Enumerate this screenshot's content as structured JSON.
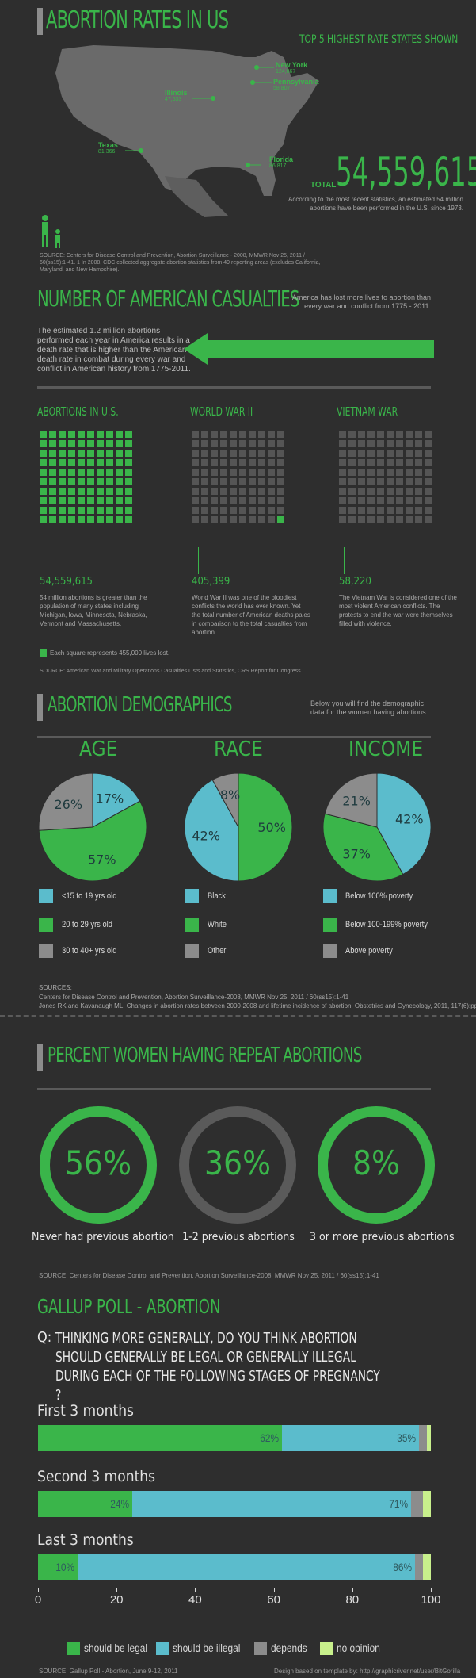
{
  "header": {
    "title": "ABORTION RATES IN US",
    "top5_label": "TOP 5 HIGHEST RATE STATES SHOWN",
    "states": [
      {
        "name": "New York",
        "value": "124,867"
      },
      {
        "name": "Pennsylvania",
        "value": "58,807"
      },
      {
        "name": "Illinois",
        "value": "47,633"
      },
      {
        "name": "Texas",
        "value": "81,366"
      },
      {
        "name": "Florida",
        "value": "86,817"
      }
    ],
    "total_label": "TOTAL",
    "total_value": "54,559,615",
    "total_desc": "According to the most recent statistics, an estimated 54 million abortions have been performed in the U.S. since 1973.",
    "source": "SOURCE: Centers for Disease Control and Prevention, Abortion Surveillance - 2008, MMWR Nov 25, 2011 / 60(ss15):1-41. 1 In 2008, CDC collected aggregate abortion statistics from 49 reporting areas (excludes California, Maryland, and New Hampshire)."
  },
  "casualties": {
    "title": "NUMBER OF AMERICAN CASUALTIES",
    "subtitle": "America has lost more lives to abortion than every war and conflict from 1775 - 2011.",
    "body": "The estimated 1.2 million abortions performed each year in America results in a death rate that is higher than the American death rate in combat during every war and conflict in American history from 1775-2011.",
    "columns": [
      {
        "title": "ABORTIONS IN U.S.",
        "value": "54,559,615",
        "desc": "54 million abortions is greater than the population of many states including Michigan, Iowa, Minnesota, Nebraska, Vermont and Massachusetts.",
        "filled": 100
      },
      {
        "title": "WORLD WAR II",
        "value": "405,399",
        "desc": "World War II was one of the bloodiest conflicts the world has ever known. Yet the total number of American deaths pales in comparison to the total casualties from abortion.",
        "filled": 1
      },
      {
        "title": "VIETNAM WAR",
        "value": "58,220",
        "desc": "The Vietnam War is considered one of the most violent American conflicts. The protests to end the war were themselves filled with violence.",
        "filled": 0
      }
    ],
    "legend": "Each square represents 455,000 lives lost.",
    "source": "SOURCE: American War and Military Operations Casualties Lists and Statistics, CRS Report for Congress"
  },
  "demographics": {
    "title": "ABORTION DEMOGRAPHICS",
    "subtitle": "Below you will find the demographic data for the women having abortions.",
    "sources_label": "SOURCES:",
    "source_1": "Centers for Disease Control and Prevention, Abortion Surveillance-2008, MMWR Nov 25, 2011 / 60(ss15):1-41",
    "source_2": "Jones RK and Kavanaugh ML, Changes in abortion rates between 2000-2008 and lifetime incidence of abortion, Obstetrics and Gynecology, 2011, 117(6):pp-pp"
  },
  "repeat": {
    "title": "PERCENT WOMEN HAVING REPEAT ABORTIONS",
    "items": [
      {
        "value": "56%",
        "label": "Never had previous abortion"
      },
      {
        "value": "36%",
        "label": "1-2 previous abortions"
      },
      {
        "value": "8%",
        "label": "3 or more previous abortions"
      }
    ],
    "source": "SOURCE: Centers for Disease Control and Prevention, Abortion Surveillance-2008, MMWR Nov 25, 2011 / 60(ss15):1-41"
  },
  "poll": {
    "title": "GALLUP POLL - ABORTION",
    "q_prefix": "Q:",
    "question": "THINKING MORE GENERALLY, DO YOU THINK ABORTION SHOULD GENERALLY BE LEGAL OR GENERALLY ILLEGAL DURING EACH OF THE FOLLOWING STAGES OF PREGNANCY ?",
    "source": "SOURCE: Gallup Poll - Abortion, June 9-12, 2011",
    "credit": "Design based on template by: http://graphicriver.net/user/BitGorilla"
  },
  "colors": {
    "green": "#3ab54a",
    "blue": "#5bbccc",
    "gray": "#8c8c8c",
    "lightgreen": "#c8f08c",
    "background": "#2e2e2e"
  },
  "chart_data": [
    {
      "type": "pie",
      "title": "AGE",
      "labels": [
        "<15 to 19 yrs old",
        "20 to 29 yrs old",
        "30 to 40+ yrs old"
      ],
      "values": [
        17,
        57,
        26
      ]
    },
    {
      "type": "pie",
      "title": "RACE",
      "labels": [
        "Black",
        "White",
        "Other"
      ],
      "values": [
        42,
        50,
        8
      ]
    },
    {
      "type": "pie",
      "title": "INCOME",
      "labels": [
        "Below 100% poverty",
        "Below 100-199% poverty",
        "Above poverty"
      ],
      "values": [
        42,
        37,
        21
      ]
    },
    {
      "type": "bar",
      "stacked": true,
      "orientation": "horizontal",
      "categories": [
        "First 3 months",
        "Second 3 months",
        "Last 3 months"
      ],
      "series": [
        {
          "name": "should be legal",
          "values": [
            62,
            24,
            10
          ]
        },
        {
          "name": "should be illegal",
          "values": [
            35,
            71,
            86
          ]
        },
        {
          "name": "depends",
          "values": [
            2,
            3,
            2
          ]
        },
        {
          "name": "no opinion",
          "values": [
            1,
            2,
            2
          ]
        }
      ],
      "xlim": [
        0,
        100
      ],
      "xticks": [
        0,
        20,
        40,
        60,
        80,
        100
      ],
      "legend": "bottom"
    }
  ]
}
